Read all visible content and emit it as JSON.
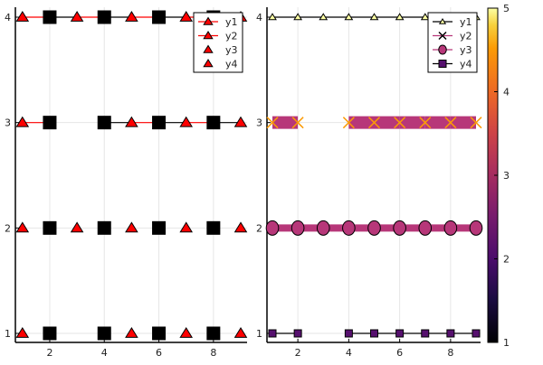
{
  "chart_data": [
    {
      "type": "line",
      "x": [
        1,
        2,
        3,
        4,
        5,
        6,
        7,
        8,
        9
      ],
      "xticks": [
        "2",
        "4",
        "6",
        "8"
      ],
      "yticks": [
        "1",
        "2",
        "3",
        "4"
      ],
      "xlim": [
        0.75,
        9.25
      ],
      "ylim": [
        0.92,
        4.08
      ],
      "grid": true,
      "legend_position": "top-right",
      "series": [
        {
          "name": "y1",
          "y": [
            4,
            4,
            4,
            4,
            4,
            4,
            4,
            4,
            4
          ],
          "line": true
        },
        {
          "name": "y2",
          "y": [
            3,
            3,
            null,
            3,
            3,
            3,
            3,
            3,
            3
          ],
          "line": true
        },
        {
          "name": "y3",
          "y": [
            2,
            2,
            2,
            2,
            2,
            2,
            2,
            2,
            2
          ],
          "line": false
        },
        {
          "name": "y4",
          "y": [
            1,
            1,
            null,
            1,
            1,
            1,
            1,
            1,
            1
          ],
          "line": false
        }
      ],
      "marker_cycle": [
        "triangle",
        "square"
      ],
      "color_cycle": [
        "#ff0000",
        "#000000"
      ]
    },
    {
      "type": "line",
      "x": [
        1,
        2,
        3,
        4,
        5,
        6,
        7,
        8,
        9
      ],
      "xticks": [
        "2",
        "4",
        "6",
        "8"
      ],
      "yticks": [
        "1",
        "2",
        "3",
        "4"
      ],
      "xlim": [
        0.75,
        9.25
      ],
      "ylim": [
        0.92,
        4.08
      ],
      "grid": true,
      "legend_position": "top-right",
      "colorbar": {
        "colormap": "inferno",
        "range": [
          1,
          5
        ],
        "ticks": [
          "1",
          "2",
          "3",
          "4",
          "5"
        ]
      },
      "series": [
        {
          "name": "y1",
          "y": [
            4,
            4,
            4,
            4,
            4,
            4,
            4,
            4,
            4
          ],
          "marker": "triangle",
          "line_color": "#000000",
          "marker_color": "#fcffa4"
        },
        {
          "name": "y2",
          "y": [
            3,
            3,
            null,
            3,
            3,
            3,
            3,
            3,
            3
          ],
          "marker": "x",
          "line_color": "#b73779",
          "marker_color": "#fb9b06"
        },
        {
          "name": "y3",
          "y": [
            2,
            2,
            2,
            2,
            2,
            2,
            2,
            2,
            2
          ],
          "marker": "circle",
          "line_color": "#b73779",
          "marker_color": "#b73779"
        },
        {
          "name": "y4",
          "y": [
            1,
            1,
            null,
            1,
            1,
            1,
            1,
            1,
            1
          ],
          "marker": "square",
          "line_color": "#000000",
          "marker_color": "#56106e"
        }
      ]
    }
  ]
}
